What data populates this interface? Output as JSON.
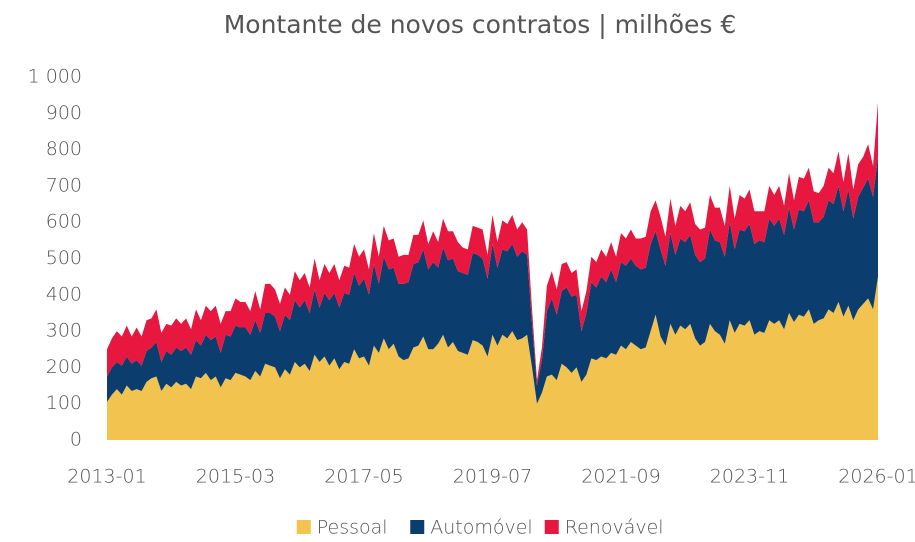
{
  "chart_data": {
    "type": "stacked_area",
    "title": "Montante de novos contratos | milhões €",
    "categories": [
      "2013-01",
      null,
      null,
      null,
      null,
      null,
      null,
      null,
      null,
      null,
      null,
      null,
      null,
      null,
      null,
      null,
      null,
      null,
      null,
      null,
      null,
      null,
      null,
      null,
      null,
      null,
      "2015-03",
      null,
      null,
      null,
      null,
      null,
      null,
      null,
      null,
      null,
      null,
      null,
      null,
      null,
      null,
      null,
      null,
      null,
      null,
      null,
      null,
      null,
      null,
      null,
      null,
      null,
      "2017-05",
      null,
      null,
      null,
      null,
      null,
      null,
      null,
      null,
      null,
      null,
      null,
      null,
      null,
      null,
      null,
      null,
      null,
      null,
      null,
      null,
      null,
      null,
      null,
      null,
      null,
      "2019-07",
      null,
      null,
      null,
      null,
      null,
      null,
      null,
      null,
      null,
      null,
      null,
      null,
      null,
      null,
      null,
      null,
      null,
      null,
      null,
      null,
      null,
      null,
      null,
      null,
      null,
      "2021-09",
      null,
      null,
      null,
      null,
      null,
      null,
      null,
      null,
      null,
      null,
      null,
      null,
      null,
      null,
      null,
      null,
      null,
      null,
      null,
      null,
      null,
      null,
      null,
      null,
      null,
      "2023-11",
      null,
      null,
      null,
      null,
      null,
      null,
      null,
      null,
      null,
      null,
      null,
      null,
      null,
      null,
      null,
      null,
      null,
      null,
      null,
      null,
      null,
      null,
      null,
      null,
      null,
      "2026-01"
    ],
    "series": [
      {
        "name": "Pessoal",
        "color": "#f2c44f",
        "values": [
          105,
          125,
          140,
          125,
          150,
          135,
          140,
          135,
          160,
          170,
          175,
          135,
          155,
          145,
          160,
          150,
          155,
          140,
          175,
          170,
          185,
          165,
          175,
          145,
          170,
          165,
          185,
          180,
          175,
          165,
          190,
          175,
          210,
          205,
          200,
          170,
          195,
          180,
          215,
          200,
          210,
          190,
          235,
          215,
          230,
          205,
          225,
          195,
          215,
          210,
          250,
          225,
          230,
          205,
          260,
          240,
          280,
          250,
          265,
          230,
          220,
          225,
          255,
          260,
          285,
          250,
          250,
          265,
          290,
          255,
          270,
          245,
          240,
          235,
          275,
          270,
          260,
          230,
          290,
          260,
          290,
          280,
          300,
          275,
          280,
          290,
          200,
          100,
          130,
          175,
          180,
          165,
          210,
          200,
          185,
          200,
          160,
          180,
          225,
          220,
          230,
          225,
          240,
          235,
          260,
          250,
          270,
          260,
          250,
          255,
          300,
          345,
          285,
          260,
          320,
          290,
          315,
          305,
          320,
          280,
          260,
          270,
          320,
          300,
          290,
          265,
          330,
          295,
          320,
          315,
          330,
          290,
          300,
          295,
          330,
          320,
          330,
          305,
          350,
          325,
          345,
          340,
          360,
          320,
          330,
          335,
          360,
          350,
          380,
          340,
          370,
          330,
          360,
          375,
          390,
          360,
          450
        ]
      },
      {
        "name": "Automóvel",
        "color": "#0b3d6e",
        "values": [
          70,
          75,
          75,
          80,
          80,
          75,
          80,
          70,
          85,
          85,
          95,
          80,
          90,
          90,
          95,
          95,
          100,
          95,
          100,
          90,
          105,
          110,
          110,
          95,
          120,
          120,
          130,
          130,
          135,
          125,
          140,
          120,
          140,
          145,
          140,
          130,
          150,
          150,
          170,
          165,
          175,
          160,
          180,
          150,
          175,
          180,
          180,
          170,
          190,
          190,
          210,
          200,
          215,
          195,
          225,
          190,
          225,
          220,
          210,
          200,
          210,
          210,
          230,
          230,
          240,
          220,
          240,
          210,
          240,
          240,
          230,
          220,
          220,
          220,
          240,
          240,
          240,
          215,
          250,
          215,
          235,
          240,
          240,
          230,
          240,
          220,
          120,
          50,
          90,
          180,
          210,
          180,
          200,
          220,
          210,
          200,
          140,
          170,
          210,
          200,
          220,
          210,
          230,
          200,
          230,
          230,
          230,
          220,
          220,
          220,
          240,
          230,
          240,
          220,
          250,
          220,
          240,
          240,
          245,
          230,
          230,
          230,
          260,
          250,
          255,
          240,
          270,
          230,
          260,
          260,
          265,
          250,
          250,
          250,
          280,
          270,
          280,
          260,
          290,
          255,
          290,
          290,
          300,
          280,
          270,
          280,
          300,
          300,
          320,
          290,
          320,
          280,
          310,
          320,
          330,
          310,
          330
        ]
      },
      {
        "name": "Renovável",
        "color": "#e8173f",
        "values": [
          75,
          80,
          85,
          80,
          85,
          75,
          90,
          80,
          85,
          80,
          90,
          80,
          75,
          80,
          80,
          75,
          80,
          70,
          85,
          70,
          80,
          80,
          85,
          80,
          65,
          70,
          75,
          70,
          70,
          65,
          80,
          65,
          80,
          80,
          75,
          75,
          75,
          70,
          80,
          75,
          75,
          70,
          85,
          75,
          80,
          75,
          80,
          75,
          75,
          75,
          80,
          80,
          80,
          70,
          85,
          75,
          85,
          80,
          80,
          75,
          80,
          75,
          80,
          75,
          80,
          70,
          85,
          70,
          80,
          80,
          75,
          80,
          70,
          70,
          75,
          75,
          80,
          65,
          80,
          70,
          80,
          75,
          80,
          75,
          80,
          70,
          40,
          15,
          35,
          70,
          75,
          70,
          75,
          70,
          65,
          70,
          55,
          60,
          70,
          70,
          75,
          70,
          75,
          70,
          80,
          75,
          80,
          75,
          85,
          85,
          90,
          85,
          90,
          80,
          95,
          80,
          90,
          85,
          90,
          85,
          90,
          85,
          95,
          90,
          95,
          85,
          100,
          85,
          95,
          90,
          95,
          90,
          80,
          85,
          90,
          85,
          90,
          80,
          95,
          80,
          90,
          90,
          90,
          85,
          80,
          85,
          90,
          85,
          95,
          80,
          100,
          80,
          90,
          85,
          95,
          85,
          150
        ]
      }
    ],
    "ylim": [
      0,
      1000
    ],
    "yticks": [
      0,
      100,
      200,
      300,
      400,
      500,
      600,
      700,
      800,
      900,
      {
        "value": 1000,
        "label": "1 000"
      }
    ],
    "legend": "bottom",
    "grid": false
  }
}
